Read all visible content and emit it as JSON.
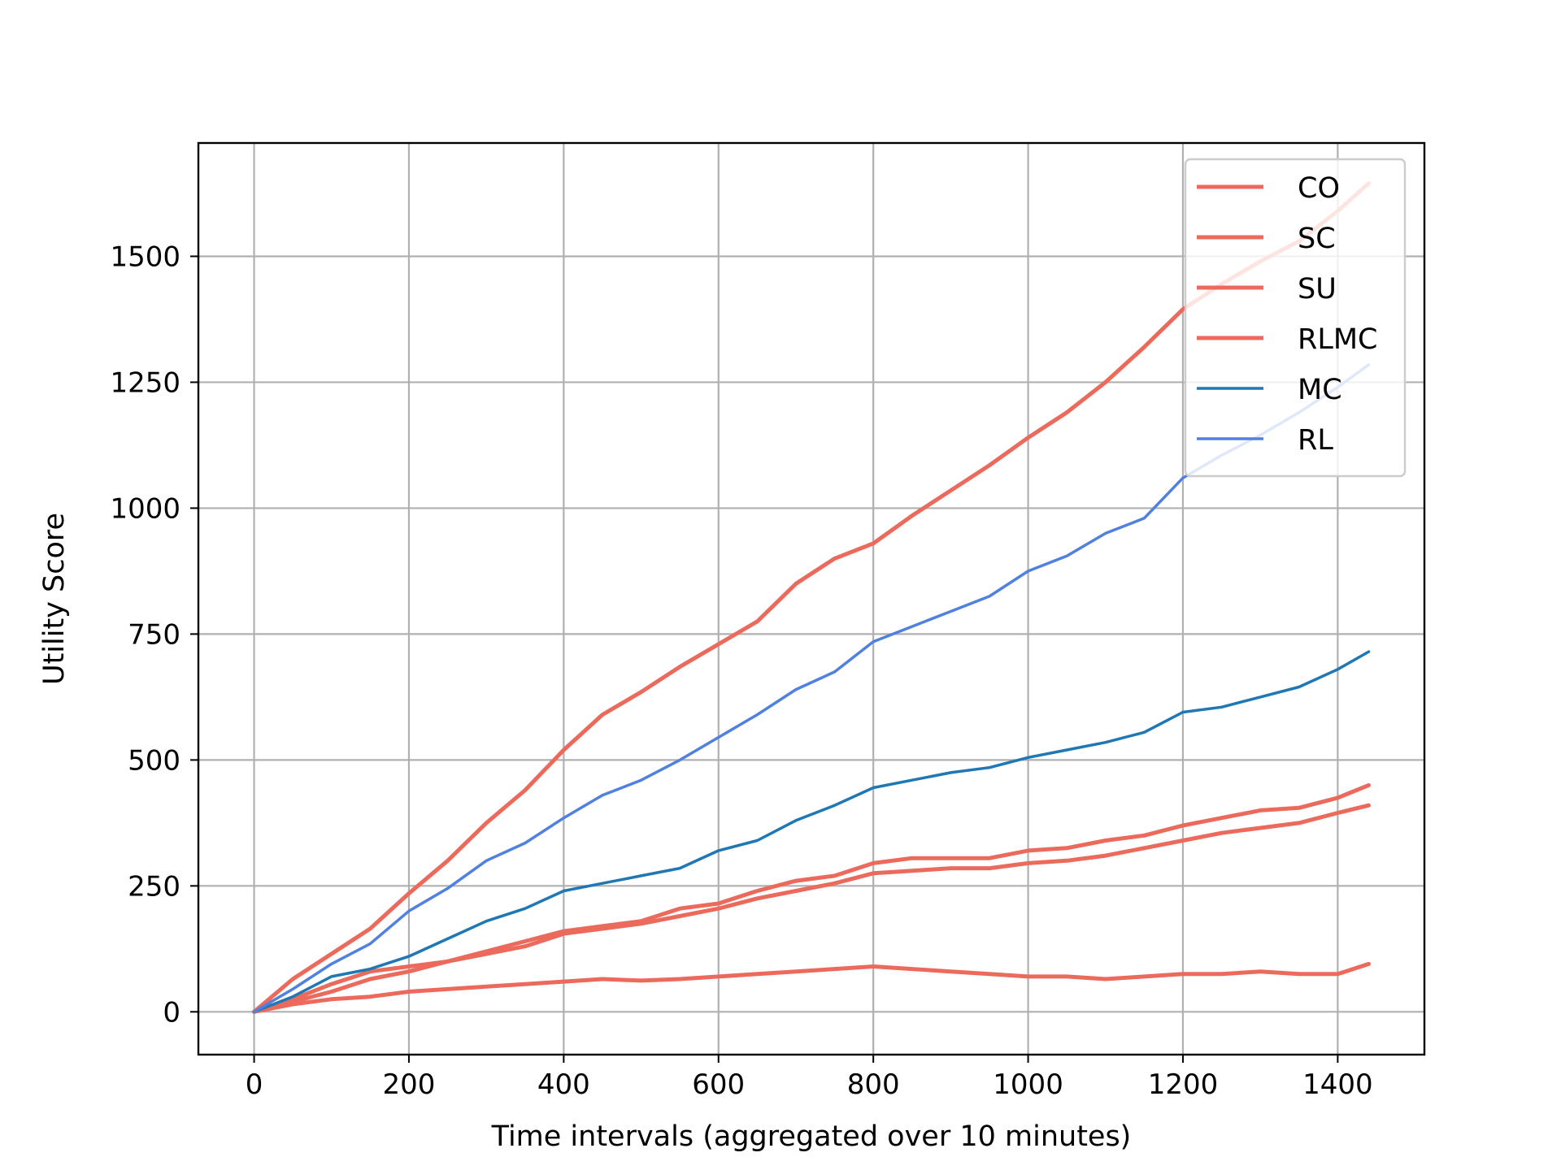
{
  "chart_data": {
    "type": "line",
    "title": "",
    "xlabel": "Time intervals (aggregated over 10 minutes)",
    "ylabel": "Utility Score",
    "xlim": [
      -72,
      1512
    ],
    "ylim": [
      -85,
      1725
    ],
    "xticks": [
      0,
      200,
      400,
      600,
      800,
      1000,
      1200,
      1400
    ],
    "yticks": [
      0,
      250,
      500,
      750,
      1000,
      1250,
      1500
    ],
    "grid": true,
    "legend_position": "top-right",
    "x": [
      0,
      50,
      100,
      150,
      200,
      250,
      300,
      350,
      400,
      450,
      500,
      550,
      600,
      650,
      700,
      750,
      800,
      850,
      900,
      950,
      1000,
      1050,
      1100,
      1150,
      1200,
      1250,
      1300,
      1350,
      1400,
      1440
    ],
    "series": [
      {
        "name": "CO",
        "color": "#ec6a5c",
        "width": 5,
        "values": [
          0,
          65,
          115,
          165,
          235,
          300,
          375,
          440,
          520,
          590,
          635,
          685,
          730,
          775,
          850,
          900,
          930,
          985,
          1035,
          1085,
          1140,
          1190,
          1250,
          1320,
          1395,
          1445,
          1490,
          1530,
          1590,
          1645
        ]
      },
      {
        "name": "SC",
        "color": "#ec6a5c",
        "width": 5,
        "values": [
          0,
          25,
          55,
          80,
          90,
          100,
          120,
          140,
          160,
          170,
          180,
          205,
          215,
          240,
          260,
          270,
          295,
          305,
          305,
          305,
          320,
          325,
          340,
          350,
          370,
          385,
          400,
          405,
          425,
          450
        ]
      },
      {
        "name": "SU",
        "color": "#ec6a5c",
        "width": 5,
        "values": [
          0,
          15,
          25,
          30,
          40,
          45,
          50,
          55,
          60,
          65,
          62,
          65,
          70,
          75,
          80,
          85,
          90,
          85,
          80,
          75,
          70,
          70,
          65,
          70,
          75,
          75,
          80,
          75,
          75,
          95
        ]
      },
      {
        "name": "RLMC",
        "color": "#ec6a5c",
        "width": 5,
        "values": [
          0,
          20,
          40,
          65,
          80,
          100,
          115,
          130,
          155,
          165,
          175,
          190,
          205,
          225,
          240,
          255,
          275,
          280,
          285,
          285,
          295,
          300,
          310,
          325,
          340,
          355,
          365,
          375,
          395,
          410
        ]
      },
      {
        "name": "MC",
        "color": "#1f77b4",
        "width": 3.5,
        "values": [
          0,
          30,
          70,
          85,
          110,
          145,
          180,
          205,
          240,
          255,
          270,
          285,
          320,
          340,
          380,
          410,
          445,
          460,
          475,
          485,
          505,
          520,
          535,
          555,
          595,
          605,
          625,
          645,
          680,
          715
        ]
      },
      {
        "name": "RL",
        "color": "#5181e0",
        "width": 3.5,
        "values": [
          0,
          45,
          95,
          135,
          200,
          245,
          300,
          335,
          385,
          430,
          460,
          500,
          545,
          590,
          640,
          675,
          735,
          765,
          795,
          825,
          875,
          905,
          950,
          980,
          1060,
          1105,
          1145,
          1190,
          1240,
          1285
        ]
      }
    ]
  }
}
